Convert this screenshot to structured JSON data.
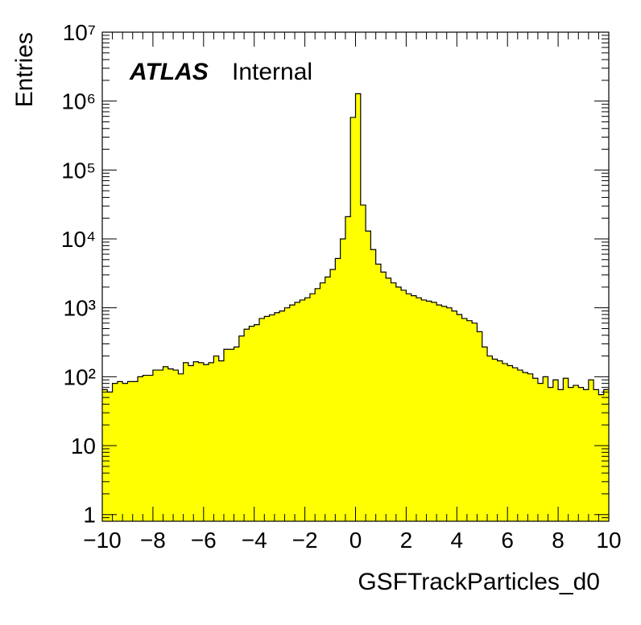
{
  "chart_data": {
    "type": "bar",
    "style": "histogram",
    "title": "",
    "xlabel": "GSFTrackParticles_d0",
    "ylabel": "Entries",
    "label": {
      "experiment": "ATLAS",
      "status": "Internal"
    },
    "xlim": [
      -10,
      10
    ],
    "ylim": [
      0.8,
      10000000
    ],
    "yscale": "log",
    "grid": false,
    "legend": "none",
    "fill_color": "#ffff00",
    "line_color": "#000000",
    "x_ticks": [
      "−10",
      "−8",
      "−6",
      "−4",
      "−2",
      "0",
      "2",
      "4",
      "6",
      "8",
      "10"
    ],
    "y_ticks": [
      "1",
      "10",
      "10²",
      "10³",
      "10⁴",
      "10⁵",
      "10⁶",
      "10⁷"
    ],
    "bin_edges_start": -10,
    "bin_width": 0.2,
    "counts": [
      65,
      60,
      80,
      85,
      80,
      85,
      85,
      100,
      105,
      105,
      125,
      125,
      140,
      130,
      125,
      110,
      160,
      145,
      165,
      160,
      150,
      160,
      200,
      170,
      250,
      250,
      270,
      390,
      490,
      540,
      570,
      700,
      750,
      790,
      850,
      900,
      1000,
      1100,
      1200,
      1300,
      1400,
      1600,
      1900,
      2300,
      2800,
      3600,
      5200,
      10000,
      21000,
      580000,
      1280000,
      31000,
      13000,
      7000,
      4300,
      3300,
      2700,
      2300,
      2000,
      1800,
      1600,
      1500,
      1400,
      1300,
      1250,
      1200,
      1100,
      1050,
      1000,
      900,
      800,
      700,
      650,
      600,
      450,
      270,
      200,
      180,
      170,
      155,
      145,
      135,
      125,
      115,
      110,
      95,
      80,
      100,
      70,
      90,
      65,
      95,
      70,
      75,
      70,
      65,
      90,
      65,
      55,
      65
    ]
  }
}
